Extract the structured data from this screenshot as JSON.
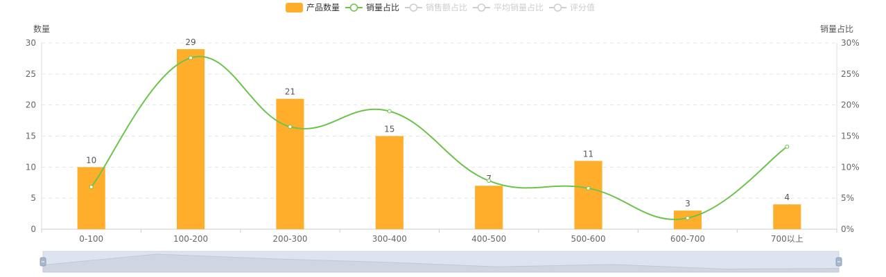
{
  "chart_data": {
    "type": "bar",
    "categories": [
      "0-100",
      "100-200",
      "200-300",
      "300-400",
      "400-500",
      "500-600",
      "600-700",
      "700以上"
    ],
    "series": [
      {
        "name": "产品数量",
        "type": "bar",
        "axis": "left",
        "values": [
          10,
          29,
          21,
          15,
          7,
          11,
          3,
          4
        ],
        "color": "#FFAE2C",
        "show_labels": true
      },
      {
        "name": "销量占比",
        "type": "line",
        "axis": "right",
        "smooth": true,
        "values": [
          6.8,
          27.6,
          16.5,
          19.0,
          7.8,
          6.6,
          1.8,
          13.3
        ],
        "color": "#6BC34B"
      }
    ],
    "legend": [
      {
        "name": "产品数量",
        "type": "bar",
        "active": true,
        "color": "#FFAE2C"
      },
      {
        "name": "销量占比",
        "type": "line",
        "active": true,
        "color": "#6BC34B"
      },
      {
        "name": "销售额占比",
        "type": "line",
        "active": false,
        "color": "#cccccc"
      },
      {
        "name": "平均销量占比",
        "type": "line",
        "active": false,
        "color": "#cccccc"
      },
      {
        "name": "评分值",
        "type": "line",
        "active": false,
        "color": "#cccccc"
      }
    ],
    "legend_position": "top-center",
    "yaxis_left": {
      "name": "数量",
      "min": 0,
      "max": 30,
      "ticks": [
        0,
        5,
        10,
        15,
        20,
        25,
        30
      ]
    },
    "yaxis_right": {
      "name": "销量占比",
      "min": 0,
      "max": 30,
      "ticks": [
        "0%",
        "5%",
        "10%",
        "15%",
        "20%",
        "25%",
        "30%"
      ]
    },
    "grid": "horizontal-dashed",
    "datazoom": {
      "visible": true,
      "range": [
        0,
        100
      ]
    }
  }
}
